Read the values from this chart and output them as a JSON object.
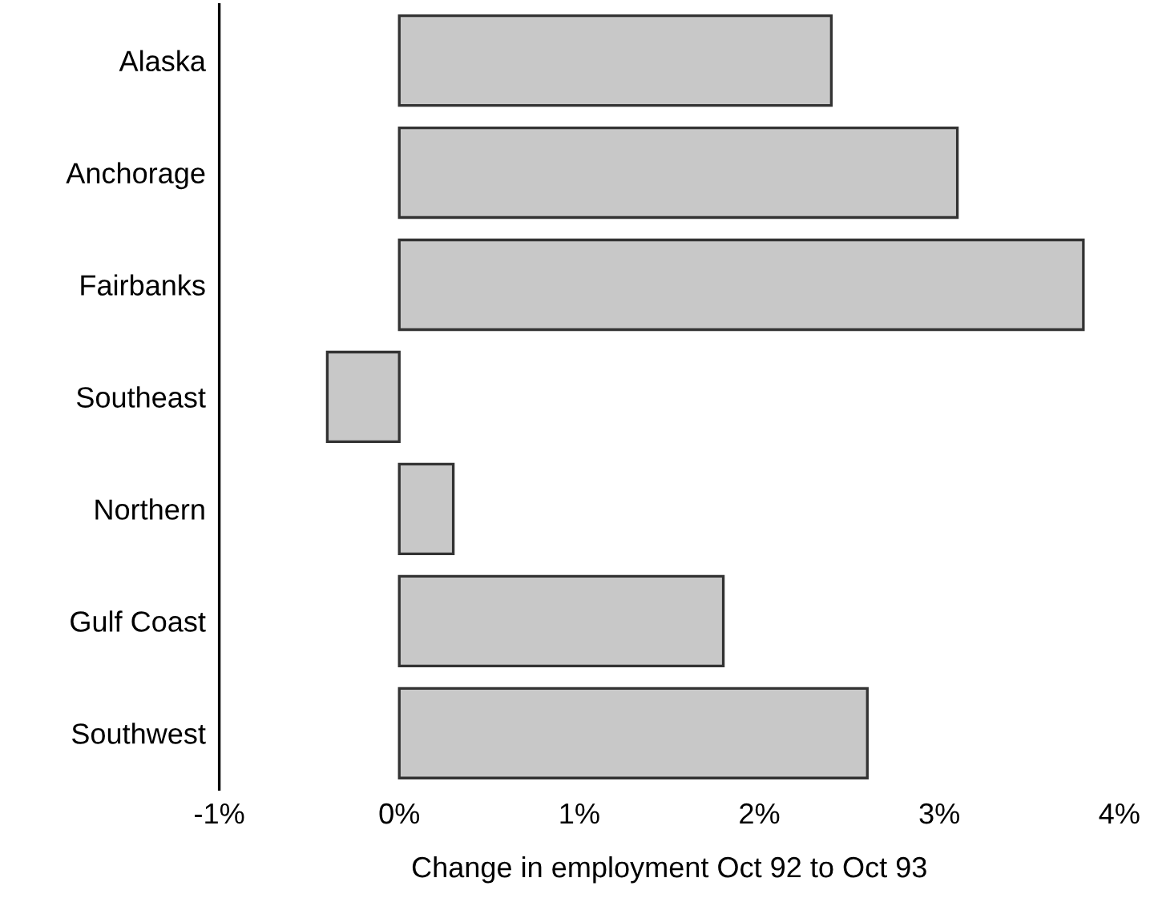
{
  "chart_data": {
    "type": "bar",
    "orientation": "horizontal",
    "xlabel": "Change in employment Oct 92 to Oct 93",
    "categories": [
      "Alaska",
      "Anchorage",
      "Fairbanks",
      "Southeast",
      "Northern",
      "Gulf Coast",
      "Southwest"
    ],
    "values": [
      2.4,
      3.1,
      3.8,
      -0.4,
      0.3,
      1.8,
      2.6
    ],
    "color": "#c8c8c8",
    "xlim": [
      -1,
      4
    ],
    "xticks": [
      {
        "value": -1,
        "label": "-1%"
      },
      {
        "value": 0,
        "label": "0%"
      },
      {
        "value": 1,
        "label": "1%"
      },
      {
        "value": 2,
        "label": "2%"
      },
      {
        "value": 3,
        "label": "3%"
      },
      {
        "value": 4,
        "label": "4%"
      }
    ],
    "grid": false,
    "legend": false
  }
}
